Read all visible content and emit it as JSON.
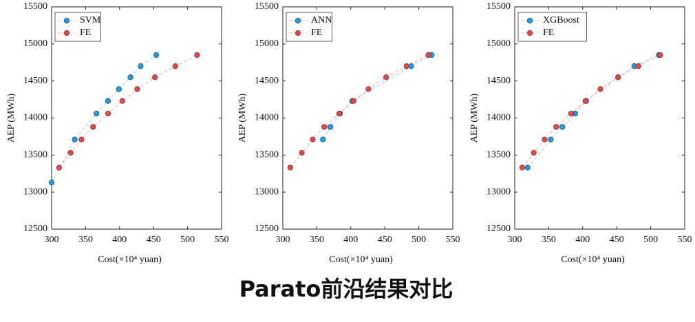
{
  "title": "Parato前沿结果对比",
  "chart_data": [
    {
      "type": "line",
      "xlabel": "Cost(×10⁴ yuan)",
      "ylabel": "AEP (MWh)",
      "xlim": [
        300,
        550
      ],
      "xticks": [
        300,
        350,
        400,
        450,
        500,
        550
      ],
      "ylim": [
        12500,
        15500
      ],
      "yticks": [
        12500,
        13000,
        13500,
        14000,
        14500,
        15000,
        15500
      ],
      "legend": "upper left",
      "series": [
        {
          "name": "SVM",
          "color": "#1f9ce6",
          "x": [
            300,
            334,
            366,
            383,
            399,
            416,
            431,
            454
          ],
          "values": [
            13130,
            13710,
            14060,
            14230,
            14390,
            14550,
            14700,
            14850
          ]
        },
        {
          "name": "FE",
          "color": "#e8474a",
          "x": [
            311,
            328,
            344,
            361,
            383,
            404,
            426,
            452,
            482,
            514
          ],
          "values": [
            13330,
            13530,
            13710,
            13880,
            14060,
            14230,
            14390,
            14550,
            14700,
            14850
          ]
        }
      ]
    },
    {
      "type": "line",
      "xlabel": "Cost(×10⁴ yuan)",
      "ylabel": "AEP (MWh)",
      "xlim": [
        300,
        550
      ],
      "xticks": [
        300,
        350,
        400,
        450,
        500,
        550
      ],
      "ylim": [
        12500,
        15500
      ],
      "yticks": [
        12500,
        13000,
        13500,
        14000,
        14500,
        15000,
        15500
      ],
      "legend": "upper left",
      "series": [
        {
          "name": "ANN",
          "color": "#1f9ce6",
          "x": [
            359,
            370,
            384,
            402,
            489,
            519
          ],
          "values": [
            13710,
            13880,
            14060,
            14230,
            14700,
            14850
          ]
        },
        {
          "name": "FE",
          "color": "#e8474a",
          "x": [
            311,
            328,
            344,
            361,
            383,
            404,
            426,
            452,
            482,
            514
          ],
          "values": [
            13330,
            13530,
            13710,
            13880,
            14060,
            14230,
            14390,
            14550,
            14700,
            14850
          ]
        }
      ]
    },
    {
      "type": "line",
      "xlabel": "Cost(×10⁴ yuan)",
      "ylabel": "AEP (MWh)",
      "xlim": [
        300,
        550
      ],
      "xticks": [
        300,
        350,
        400,
        450,
        500,
        550
      ],
      "ylim": [
        12500,
        15500
      ],
      "yticks": [
        12500,
        13000,
        13500,
        14000,
        14500,
        15000,
        15500
      ],
      "legend": "upper left",
      "series": [
        {
          "name": "XGBoost",
          "color": "#1f9ce6",
          "x": [
            319,
            353,
            370,
            389,
            405,
            452,
            476,
            512
          ],
          "values": [
            13330,
            13710,
            13880,
            14060,
            14230,
            14550,
            14700,
            14850
          ]
        },
        {
          "name": "FE",
          "color": "#e8474a",
          "x": [
            311,
            328,
            344,
            361,
            383,
            404,
            426,
            452,
            482,
            514
          ],
          "values": [
            13330,
            13530,
            13710,
            13880,
            14060,
            14230,
            14390,
            14550,
            14700,
            14850
          ]
        }
      ]
    }
  ]
}
